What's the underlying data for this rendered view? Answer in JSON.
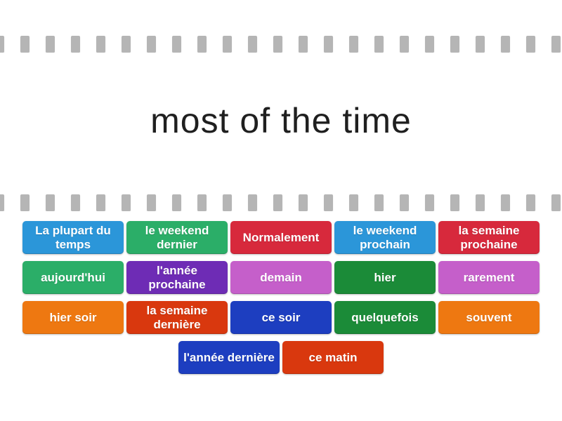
{
  "title": "most of the time",
  "decor": {
    "sprocket_color": "#b5b5b5",
    "background_color": "#ffffff",
    "title_color": "#1f1f1f"
  },
  "palette": {
    "light_blue": "#2b96d9",
    "emerald": "#2bae68",
    "crimson": "#d7293c",
    "purple": "#6e2cb5",
    "orchid": "#c55fca",
    "dark_green": "#1b8b38",
    "orange": "#ee7811",
    "red_orange": "#d9380e",
    "royal_blue": "#1d3ec0"
  },
  "rows": [
    [
      {
        "label": "La plupart du temps",
        "color": "#2b96d9"
      },
      {
        "label": "le weekend dernier",
        "color": "#2bae68"
      },
      {
        "label": "Normalement",
        "color": "#d7293c"
      },
      {
        "label": "le weekend prochain",
        "color": "#2b96d9"
      },
      {
        "label": "la semaine prochaine",
        "color": "#d7293c"
      }
    ],
    [
      {
        "label": "aujourd'hui",
        "color": "#2bae68"
      },
      {
        "label": "l'année prochaine",
        "color": "#6e2cb5"
      },
      {
        "label": "demain",
        "color": "#c55fca"
      },
      {
        "label": "hier",
        "color": "#1b8b38"
      },
      {
        "label": "rarement",
        "color": "#c55fca"
      }
    ],
    [
      {
        "label": "hier soir",
        "color": "#ee7811"
      },
      {
        "label": "la semaine dernière",
        "color": "#d9380e"
      },
      {
        "label": "ce soir",
        "color": "#1d3ec0"
      },
      {
        "label": "quelquefois",
        "color": "#1b8b38"
      },
      {
        "label": "souvent",
        "color": "#ee7811"
      }
    ],
    [
      {
        "label": "l'année dernière",
        "color": "#1d3ec0"
      },
      {
        "label": "ce matin",
        "color": "#d9380e"
      }
    ]
  ]
}
